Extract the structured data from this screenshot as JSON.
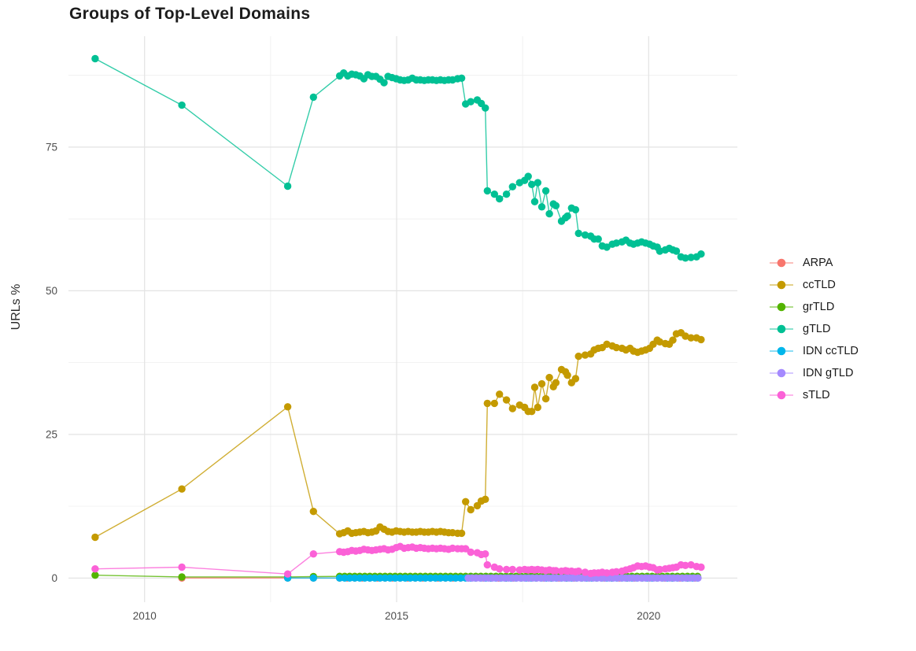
{
  "title": "Groups of Top-Level Domains",
  "y_axis": {
    "title": "URLs %",
    "tick_labels": [
      "0",
      "25",
      "50",
      "75"
    ]
  },
  "x_axis": {
    "tick_labels": [
      "2010",
      "2015",
      "2020"
    ]
  },
  "legend": {
    "position": "right",
    "items": [
      {
        "label": "ARPA",
        "color": "#F8766D"
      },
      {
        "label": "ccTLD",
        "color": "#C49A00"
      },
      {
        "label": "grTLD",
        "color": "#53B400"
      },
      {
        "label": "gTLD",
        "color": "#00C094"
      },
      {
        "label": "IDN ccTLD",
        "color": "#00B6EB"
      },
      {
        "label": "IDN gTLD",
        "color": "#A58AFF"
      },
      {
        "label": "sTLD",
        "color": "#FB61D7"
      }
    ]
  },
  "chart_data": {
    "type": "line",
    "title": "Groups of Top-Level Domains",
    "xlabel": "",
    "ylabel": "URLs %",
    "xlim": [
      2008.49,
      2021.76
    ],
    "ylim": [
      -4.2,
      94.3
    ],
    "x_major": [
      2010,
      2015,
      2020
    ],
    "x_minor": [
      2012.5,
      2017.5
    ],
    "y_major": [
      0,
      25,
      50,
      75
    ],
    "y_minor": [
      12.5,
      37.5,
      62.5,
      87.5
    ],
    "grid": true,
    "legend_position": "right",
    "series": [
      {
        "name": "ARPA",
        "color": "#F8766D",
        "points": [
          [
            2010.74,
            0.0
          ],
          [
            2012.84,
            0.0
          ],
          [
            2013.35,
            0.0
          ]
        ],
        "span": {
          "from": 2013.87,
          "to": 2021.04,
          "step": 0.15,
          "y": 0.0
        }
      },
      {
        "name": "ccTLD",
        "color": "#C49A00",
        "points": [
          [
            2009.02,
            7.1
          ],
          [
            2010.74,
            15.5
          ],
          [
            2012.84,
            29.8
          ],
          [
            2013.35,
            11.6
          ],
          [
            2013.87,
            7.7
          ],
          [
            2013.95,
            7.9
          ],
          [
            2014.03,
            8.2
          ],
          [
            2014.11,
            7.8
          ],
          [
            2014.19,
            7.9
          ],
          [
            2014.27,
            8.0
          ],
          [
            2014.35,
            8.1
          ],
          [
            2014.43,
            7.9
          ],
          [
            2014.51,
            8.0
          ],
          [
            2014.59,
            8.2
          ],
          [
            2014.67,
            8.9
          ],
          [
            2014.75,
            8.5
          ],
          [
            2014.83,
            8.1
          ],
          [
            2014.91,
            8.0
          ],
          [
            2014.99,
            8.2
          ],
          [
            2015.07,
            8.1
          ],
          [
            2015.15,
            8.0
          ],
          [
            2015.23,
            8.1
          ],
          [
            2015.31,
            8.0
          ],
          [
            2015.39,
            8.0
          ],
          [
            2015.47,
            8.1
          ],
          [
            2015.55,
            8.0
          ],
          [
            2015.63,
            8.0
          ],
          [
            2015.71,
            8.1
          ],
          [
            2015.79,
            8.0
          ],
          [
            2015.87,
            8.1
          ],
          [
            2015.95,
            8.0
          ],
          [
            2016.03,
            7.9
          ],
          [
            2016.11,
            7.9
          ],
          [
            2016.21,
            7.8
          ],
          [
            2016.29,
            7.8
          ],
          [
            2016.37,
            13.3
          ],
          [
            2016.47,
            11.9
          ],
          [
            2016.6,
            12.6
          ],
          [
            2016.68,
            13.4
          ],
          [
            2016.76,
            13.7
          ],
          [
            2016.8,
            30.4
          ],
          [
            2016.94,
            30.4
          ],
          [
            2017.04,
            32.0
          ],
          [
            2017.18,
            31.0
          ],
          [
            2017.3,
            29.5
          ],
          [
            2017.44,
            30.1
          ],
          [
            2017.54,
            29.7
          ],
          [
            2017.61,
            29.0
          ],
          [
            2017.68,
            29.0
          ],
          [
            2017.74,
            33.2
          ],
          [
            2017.8,
            29.7
          ],
          [
            2017.88,
            33.8
          ],
          [
            2017.96,
            31.2
          ],
          [
            2018.03,
            34.9
          ],
          [
            2018.11,
            33.3
          ],
          [
            2018.16,
            34.0
          ],
          [
            2018.27,
            36.3
          ],
          [
            2018.35,
            35.9
          ],
          [
            2018.39,
            35.3
          ],
          [
            2018.47,
            34.0
          ],
          [
            2018.55,
            34.7
          ],
          [
            2018.61,
            38.6
          ],
          [
            2018.74,
            38.8
          ],
          [
            2018.85,
            39.0
          ],
          [
            2018.92,
            39.7
          ],
          [
            2019.0,
            40.0
          ],
          [
            2019.08,
            40.1
          ],
          [
            2019.17,
            40.7
          ],
          [
            2019.28,
            40.4
          ],
          [
            2019.36,
            40.1
          ],
          [
            2019.47,
            40.0
          ],
          [
            2019.55,
            39.7
          ],
          [
            2019.63,
            40.0
          ],
          [
            2019.7,
            39.5
          ],
          [
            2019.78,
            39.3
          ],
          [
            2019.86,
            39.5
          ],
          [
            2019.94,
            39.7
          ],
          [
            2020.02,
            40.0
          ],
          [
            2020.09,
            40.7
          ],
          [
            2020.17,
            41.4
          ],
          [
            2020.22,
            41.1
          ],
          [
            2020.33,
            40.8
          ],
          [
            2020.41,
            40.7
          ],
          [
            2020.48,
            41.4
          ],
          [
            2020.55,
            42.5
          ],
          [
            2020.64,
            42.7
          ],
          [
            2020.73,
            42.1
          ],
          [
            2020.84,
            41.8
          ],
          [
            2020.95,
            41.8
          ],
          [
            2021.04,
            41.5
          ]
        ]
      },
      {
        "name": "grTLD",
        "color": "#53B400",
        "points": [
          [
            2009.02,
            0.5
          ],
          [
            2010.74,
            0.2
          ],
          [
            2012.84,
            0.2
          ],
          [
            2013.35,
            0.25
          ]
        ],
        "span": {
          "from": 2013.87,
          "to": 2021.04,
          "step": 0.1,
          "y": 0.3
        }
      },
      {
        "name": "gTLD",
        "color": "#00C094",
        "points": [
          [
            2009.02,
            90.4
          ],
          [
            2010.74,
            82.3
          ],
          [
            2012.84,
            68.2
          ],
          [
            2013.35,
            83.7
          ],
          [
            2013.87,
            87.4
          ],
          [
            2013.95,
            87.9
          ],
          [
            2014.03,
            87.4
          ],
          [
            2014.11,
            87.7
          ],
          [
            2014.19,
            87.6
          ],
          [
            2014.27,
            87.4
          ],
          [
            2014.35,
            86.9
          ],
          [
            2014.43,
            87.6
          ],
          [
            2014.51,
            87.3
          ],
          [
            2014.59,
            87.3
          ],
          [
            2014.67,
            86.8
          ],
          [
            2014.75,
            86.2
          ],
          [
            2014.83,
            87.3
          ],
          [
            2014.91,
            87.1
          ],
          [
            2014.99,
            86.9
          ],
          [
            2015.07,
            86.7
          ],
          [
            2015.15,
            86.6
          ],
          [
            2015.23,
            86.7
          ],
          [
            2015.31,
            87.0
          ],
          [
            2015.39,
            86.7
          ],
          [
            2015.47,
            86.7
          ],
          [
            2015.55,
            86.6
          ],
          [
            2015.63,
            86.7
          ],
          [
            2015.71,
            86.7
          ],
          [
            2015.79,
            86.6
          ],
          [
            2015.87,
            86.7
          ],
          [
            2015.95,
            86.6
          ],
          [
            2016.03,
            86.7
          ],
          [
            2016.11,
            86.7
          ],
          [
            2016.21,
            86.9
          ],
          [
            2016.29,
            87.0
          ],
          [
            2016.37,
            82.5
          ],
          [
            2016.47,
            82.9
          ],
          [
            2016.6,
            83.2
          ],
          [
            2016.68,
            82.6
          ],
          [
            2016.76,
            81.8
          ],
          [
            2016.8,
            67.4
          ],
          [
            2016.94,
            66.8
          ],
          [
            2017.04,
            66.0
          ],
          [
            2017.18,
            66.8
          ],
          [
            2017.3,
            68.1
          ],
          [
            2017.44,
            68.8
          ],
          [
            2017.54,
            69.2
          ],
          [
            2017.61,
            69.9
          ],
          [
            2017.68,
            68.5
          ],
          [
            2017.74,
            65.5
          ],
          [
            2017.8,
            68.8
          ],
          [
            2017.88,
            64.6
          ],
          [
            2017.96,
            67.4
          ],
          [
            2018.03,
            63.4
          ],
          [
            2018.11,
            65.1
          ],
          [
            2018.16,
            64.8
          ],
          [
            2018.27,
            62.1
          ],
          [
            2018.35,
            62.7
          ],
          [
            2018.39,
            63.0
          ],
          [
            2018.47,
            64.4
          ],
          [
            2018.55,
            64.1
          ],
          [
            2018.61,
            60.0
          ],
          [
            2018.74,
            59.7
          ],
          [
            2018.85,
            59.5
          ],
          [
            2018.92,
            59.0
          ],
          [
            2019.0,
            59.0
          ],
          [
            2019.08,
            57.8
          ],
          [
            2019.17,
            57.6
          ],
          [
            2019.28,
            58.1
          ],
          [
            2019.36,
            58.3
          ],
          [
            2019.47,
            58.5
          ],
          [
            2019.55,
            58.8
          ],
          [
            2019.63,
            58.3
          ],
          [
            2019.7,
            58.1
          ],
          [
            2019.78,
            58.3
          ],
          [
            2019.86,
            58.5
          ],
          [
            2019.94,
            58.3
          ],
          [
            2020.02,
            58.1
          ],
          [
            2020.09,
            57.8
          ],
          [
            2020.17,
            57.6
          ],
          [
            2020.22,
            56.9
          ],
          [
            2020.33,
            57.1
          ],
          [
            2020.41,
            57.4
          ],
          [
            2020.48,
            57.1
          ],
          [
            2020.55,
            56.9
          ],
          [
            2020.64,
            55.9
          ],
          [
            2020.73,
            55.7
          ],
          [
            2020.84,
            55.8
          ],
          [
            2020.95,
            55.9
          ],
          [
            2021.04,
            56.4
          ]
        ]
      },
      {
        "name": "IDN ccTLD",
        "color": "#00B6EB",
        "points": [
          [
            2012.84,
            0.0
          ],
          [
            2013.35,
            0.0
          ]
        ],
        "span": {
          "from": 2013.87,
          "to": 2021.04,
          "step": 0.1,
          "y": 0.0
        }
      },
      {
        "name": "IDN gTLD",
        "color": "#A58AFF",
        "points": [],
        "span": {
          "from": 2016.42,
          "to": 2021.04,
          "step": 0.08,
          "y": 0.0
        }
      },
      {
        "name": "sTLD",
        "color": "#FB61D7",
        "points": [
          [
            2009.02,
            1.6
          ],
          [
            2010.74,
            1.9
          ],
          [
            2012.84,
            0.7
          ],
          [
            2013.35,
            4.2
          ],
          [
            2013.87,
            4.6
          ],
          [
            2013.95,
            4.5
          ],
          [
            2014.03,
            4.6
          ],
          [
            2014.11,
            4.8
          ],
          [
            2014.19,
            4.7
          ],
          [
            2014.27,
            4.8
          ],
          [
            2014.35,
            5.0
          ],
          [
            2014.43,
            4.9
          ],
          [
            2014.51,
            4.8
          ],
          [
            2014.59,
            4.9
          ],
          [
            2014.67,
            5.0
          ],
          [
            2014.75,
            5.1
          ],
          [
            2014.83,
            4.9
          ],
          [
            2014.91,
            5.0
          ],
          [
            2014.99,
            5.3
          ],
          [
            2015.07,
            5.5
          ],
          [
            2015.15,
            5.2
          ],
          [
            2015.23,
            5.3
          ],
          [
            2015.31,
            5.4
          ],
          [
            2015.39,
            5.2
          ],
          [
            2015.47,
            5.3
          ],
          [
            2015.55,
            5.2
          ],
          [
            2015.63,
            5.1
          ],
          [
            2015.71,
            5.2
          ],
          [
            2015.79,
            5.1
          ],
          [
            2015.87,
            5.2
          ],
          [
            2015.95,
            5.1
          ],
          [
            2016.03,
            5.0
          ],
          [
            2016.11,
            5.2
          ],
          [
            2016.21,
            5.1
          ],
          [
            2016.29,
            5.1
          ],
          [
            2016.37,
            5.1
          ],
          [
            2016.47,
            4.5
          ],
          [
            2016.6,
            4.4
          ],
          [
            2016.68,
            4.1
          ],
          [
            2016.76,
            4.2
          ],
          [
            2016.8,
            2.3
          ],
          [
            2016.94,
            1.9
          ],
          [
            2017.04,
            1.6
          ],
          [
            2017.18,
            1.5
          ],
          [
            2017.3,
            1.5
          ],
          [
            2017.44,
            1.4
          ],
          [
            2017.54,
            1.5
          ],
          [
            2017.61,
            1.4
          ],
          [
            2017.68,
            1.5
          ],
          [
            2017.74,
            1.4
          ],
          [
            2017.8,
            1.5
          ],
          [
            2017.88,
            1.4
          ],
          [
            2017.96,
            1.3
          ],
          [
            2018.03,
            1.4
          ],
          [
            2018.11,
            1.3
          ],
          [
            2018.16,
            1.3
          ],
          [
            2018.27,
            1.2
          ],
          [
            2018.35,
            1.3
          ],
          [
            2018.39,
            1.2
          ],
          [
            2018.47,
            1.2
          ],
          [
            2018.55,
            1.1
          ],
          [
            2018.61,
            1.2
          ],
          [
            2018.74,
            1.0
          ],
          [
            2018.85,
            0.8
          ],
          [
            2018.92,
            0.9
          ],
          [
            2019.0,
            0.9
          ],
          [
            2019.08,
            1.0
          ],
          [
            2019.17,
            0.9
          ],
          [
            2019.28,
            1.0
          ],
          [
            2019.36,
            1.1
          ],
          [
            2019.47,
            1.2
          ],
          [
            2019.55,
            1.4
          ],
          [
            2019.63,
            1.6
          ],
          [
            2019.7,
            1.8
          ],
          [
            2019.78,
            2.1
          ],
          [
            2019.86,
            2.0
          ],
          [
            2019.94,
            2.1
          ],
          [
            2020.02,
            1.9
          ],
          [
            2020.09,
            1.8
          ],
          [
            2020.17,
            1.4
          ],
          [
            2020.22,
            1.5
          ],
          [
            2020.33,
            1.6
          ],
          [
            2020.41,
            1.7
          ],
          [
            2020.48,
            1.8
          ],
          [
            2020.55,
            1.9
          ],
          [
            2020.64,
            2.3
          ],
          [
            2020.73,
            2.2
          ],
          [
            2020.84,
            2.3
          ],
          [
            2020.95,
            2.0
          ],
          [
            2021.04,
            1.9
          ]
        ]
      }
    ]
  }
}
